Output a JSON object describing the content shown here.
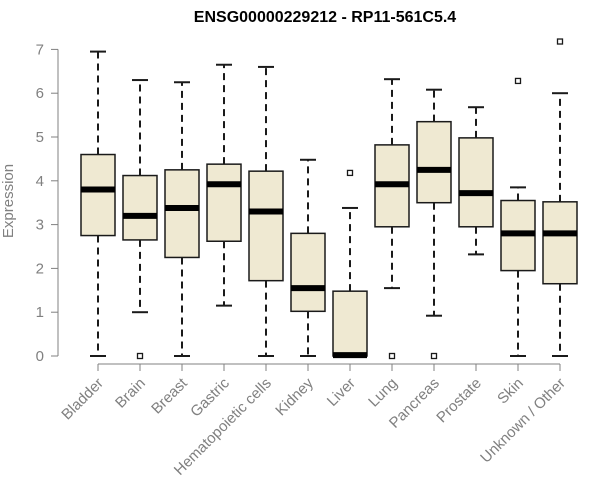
{
  "chart_data": {
    "type": "boxplot",
    "title": "ENSG00000229212 - RP11-561C5.4",
    "ylabel": "Expression",
    "xlabel": "",
    "ylim": [
      0,
      7.2
    ],
    "yticks": [
      0,
      1,
      2,
      3,
      4,
      5,
      6,
      7
    ],
    "grid": false,
    "box_fill": "#efe9d2",
    "box_stroke": "#1a1a1a",
    "axis_color": "#808080",
    "categories": [
      "Bladder",
      "Brain",
      "Breast",
      "Gastric",
      "Hematopoietic cells",
      "Kidney",
      "Liver",
      "Lung",
      "Pancreas",
      "Prostate",
      "Skin",
      "Unknown / Other"
    ],
    "boxes": [
      {
        "whisker_low": 0,
        "q1": 2.75,
        "median": 3.8,
        "q3": 4.6,
        "whisker_high": 6.95,
        "outliers": []
      },
      {
        "whisker_low": 1.0,
        "q1": 2.65,
        "median": 3.2,
        "q3": 4.12,
        "whisker_high": 6.3,
        "outliers": [
          0
        ]
      },
      {
        "whisker_low": 0,
        "q1": 2.25,
        "median": 3.38,
        "q3": 4.25,
        "whisker_high": 6.25,
        "outliers": []
      },
      {
        "whisker_low": 1.15,
        "q1": 2.62,
        "median": 3.92,
        "q3": 4.38,
        "whisker_high": 6.65,
        "outliers": []
      },
      {
        "whisker_low": 0,
        "q1": 1.72,
        "median": 3.3,
        "q3": 4.22,
        "whisker_high": 6.6,
        "outliers": []
      },
      {
        "whisker_low": 0,
        "q1": 1.02,
        "median": 1.55,
        "q3": 2.8,
        "whisker_high": 4.48,
        "outliers": []
      },
      {
        "whisker_low": 0,
        "q1": 0,
        "median": 0.02,
        "q3": 1.48,
        "whisker_high": 3.38,
        "outliers": [
          4.18
        ]
      },
      {
        "whisker_low": 1.55,
        "q1": 2.95,
        "median": 3.92,
        "q3": 4.82,
        "whisker_high": 6.32,
        "outliers": [
          0
        ]
      },
      {
        "whisker_low": 0.92,
        "q1": 3.5,
        "median": 4.25,
        "q3": 5.35,
        "whisker_high": 6.08,
        "outliers": [
          0
        ]
      },
      {
        "whisker_low": 2.32,
        "q1": 2.95,
        "median": 3.72,
        "q3": 4.98,
        "whisker_high": 5.68,
        "outliers": []
      },
      {
        "whisker_low": 0,
        "q1": 1.95,
        "median": 2.8,
        "q3": 3.55,
        "whisker_high": 3.85,
        "outliers": [
          6.28
        ]
      },
      {
        "whisker_low": 0,
        "q1": 1.65,
        "median": 2.8,
        "q3": 3.52,
        "whisker_high": 6.0,
        "outliers": [
          7.18
        ]
      }
    ]
  }
}
